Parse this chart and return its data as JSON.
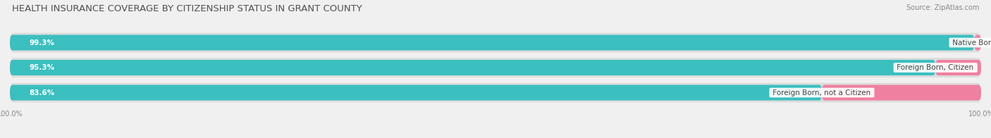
{
  "title": "HEALTH INSURANCE COVERAGE BY CITIZENSHIP STATUS IN GRANT COUNTY",
  "source": "Source: ZipAtlas.com",
  "categories": [
    "Native Born",
    "Foreign Born, Citizen",
    "Foreign Born, not a Citizen"
  ],
  "with_coverage": [
    99.3,
    95.3,
    83.6
  ],
  "without_coverage": [
    0.69,
    4.7,
    16.4
  ],
  "color_with": "#3bbfbf",
  "color_without": "#f080a0",
  "bg_color": "#f0f0f0",
  "bar_bg_color": "#dcdcdc",
  "bar_row_bg": "#e8e8e8",
  "title_fontsize": 9.5,
  "source_fontsize": 7,
  "label_fontsize": 7.5,
  "legend_fontsize": 7.5,
  "axis_label_fontsize": 7,
  "total": 100.0
}
